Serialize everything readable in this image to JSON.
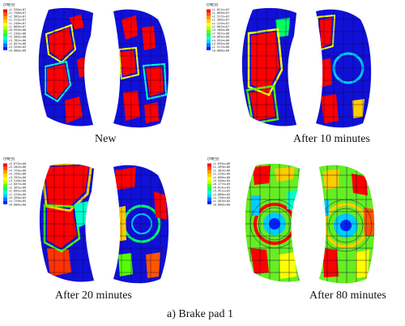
{
  "figure": {
    "caption": "a) Brake pad 1",
    "panels": [
      {
        "caption": "New",
        "legend": {
          "title": "CPRESS",
          "values": [
            "+1.930e+07",
            "+1.758e+07",
            "+1.585e+07",
            "+1.413e+07",
            "+1.240e+07",
            "+1.068e+07",
            "+8.955e+06",
            "+7.230e+06",
            "+5.506e+06",
            "+3.781e+06",
            "+2.057e+06",
            "+3.320e+05",
            "+0.000e+00"
          ]
        }
      },
      {
        "caption": "After 10 minutes",
        "legend": {
          "title": "CPRESS",
          "values": [
            "+1.821e+07",
            "+1.669e+07",
            "+1.517e+07",
            "+1.366e+07",
            "+1.214e+07",
            "+1.062e+07",
            "+9.104e+06",
            "+7.587e+06",
            "+6.069e+06",
            "+4.552e+06",
            "+3.035e+06",
            "+1.517e+06",
            "+0.000e+00"
          ]
        }
      },
      {
        "caption": "After 20 minutes",
        "legend": {
          "title": "CPRESS",
          "values": [
            "+5.675e+06",
            "+5.202e+06",
            "+4.729e+06",
            "+4.256e+06",
            "+3.783e+06",
            "+3.310e+06",
            "+2.837e+06",
            "+2.365e+06",
            "+1.892e+06",
            "+1.419e+06",
            "+9.458e+05",
            "+4.729e+05",
            "+0.000e+00"
          ]
        }
      },
      {
        "caption": "After 80 minutes",
        "legend": {
          "title": "CPRESS",
          "values": [
            "+1.635e+06",
            "+1.499e+06",
            "+1.363e+06",
            "+1.226e+06",
            "+1.090e+06",
            "+9.540e+05",
            "+8.177e+05",
            "+6.814e+05",
            "+5.451e+05",
            "+4.088e+05",
            "+2.726e+05",
            "+1.363e+05",
            "+0.000e+00"
          ]
        }
      }
    ]
  },
  "colors": {
    "legend_scale": [
      "#ff0000",
      "#ff5500",
      "#ff9900",
      "#ffcc00",
      "#ffff00",
      "#bbff00",
      "#55ff00",
      "#00ff66",
      "#00ffcc",
      "#00ccff",
      "#0077ff",
      "#0022ff",
      "#0000cc"
    ],
    "background_blue": "#1010d8",
    "mesh_line": "#0a0a3a"
  }
}
